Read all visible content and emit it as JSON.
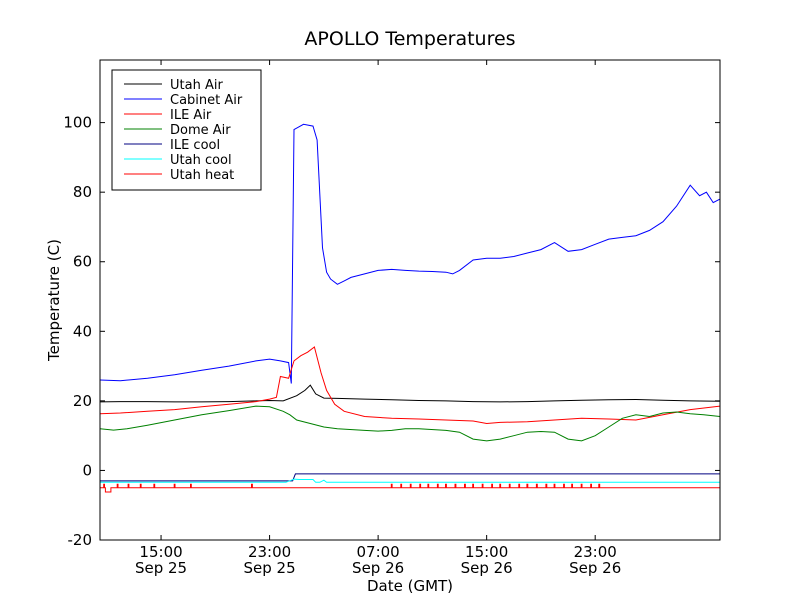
{
  "chart_data": {
    "type": "line",
    "title": "APOLLO Temperatures",
    "xlabel": "Date (GMT)",
    "ylabel": "Temperature (C)",
    "xlim": [
      10.5,
      56.2
    ],
    "ylim": [
      -20,
      118
    ],
    "grid": false,
    "legend_position": "top-left",
    "yticks": [
      {
        "value": -20,
        "label": "-20"
      },
      {
        "value": 0,
        "label": "0"
      },
      {
        "value": 20,
        "label": "20"
      },
      {
        "value": 40,
        "label": "40"
      },
      {
        "value": 60,
        "label": "60"
      },
      {
        "value": 80,
        "label": "80"
      },
      {
        "value": 100,
        "label": "100"
      }
    ],
    "xticks": [
      {
        "value": 15,
        "time": "15:00",
        "date": "Sep 25"
      },
      {
        "value": 23,
        "time": "23:00",
        "date": "Sep 25"
      },
      {
        "value": 31,
        "time": "07:00",
        "date": "Sep 26"
      },
      {
        "value": 39,
        "time": "15:00",
        "date": "Sep 26"
      },
      {
        "value": 47,
        "time": "23:00",
        "date": "Sep 26"
      }
    ],
    "x_units": "hours since 00:00 Sep 25 GMT",
    "series": [
      {
        "name": "Utah Air",
        "color": "#000000",
        "x": [
          10.5,
          12,
          14,
          16,
          18,
          20,
          22,
          23,
          24,
          25,
          25.6,
          26,
          26.4,
          27,
          28,
          30,
          32,
          34,
          36,
          38,
          40,
          42,
          44,
          46,
          48,
          50,
          52,
          54,
          56.2
        ],
        "y": [
          19.7,
          19.8,
          19.8,
          19.7,
          19.7,
          19.8,
          20.0,
          20.1,
          20.0,
          21.5,
          23.0,
          24.5,
          22.0,
          20.8,
          20.7,
          20.5,
          20.3,
          20.1,
          20.0,
          19.8,
          19.7,
          19.8,
          20.0,
          20.2,
          20.3,
          20.4,
          20.2,
          20.0,
          19.9
        ]
      },
      {
        "name": "Cabinet Air",
        "color": "#0000ff",
        "x": [
          10.5,
          12,
          14,
          16,
          18,
          20,
          22,
          23,
          23.8,
          24.4,
          24.6,
          24.8,
          25.5,
          26.2,
          26.5,
          26.9,
          27.2,
          27.5,
          28,
          28.5,
          29,
          30,
          31,
          32,
          33,
          34,
          35,
          36,
          36.5,
          37,
          38,
          39,
          40,
          41,
          42,
          43,
          44,
          45,
          46,
          47,
          48,
          49,
          50,
          51,
          52,
          53,
          54,
          54.7,
          55.2,
          55.7,
          56.2
        ],
        "y": [
          26.0,
          25.8,
          26.5,
          27.5,
          28.8,
          30.0,
          31.5,
          32.0,
          31.5,
          31.0,
          25.0,
          98.0,
          99.5,
          99.0,
          95.0,
          64.0,
          57.0,
          55.0,
          53.5,
          54.5,
          55.5,
          56.5,
          57.5,
          57.8,
          57.5,
          57.3,
          57.2,
          57.0,
          56.5,
          57.5,
          60.5,
          61.0,
          61.0,
          61.5,
          62.5,
          63.5,
          65.5,
          63.0,
          63.5,
          65.0,
          66.5,
          67.0,
          67.5,
          69.0,
          71.5,
          76.0,
          82.0,
          79.0,
          80.0,
          77.0,
          78.0
        ]
      },
      {
        "name": "ILE Air",
        "color": "#ff0000",
        "x": [
          10.5,
          12,
          14,
          16,
          18,
          20,
          22,
          23,
          23.5,
          23.8,
          24.4,
          24.8,
          25.3,
          25.8,
          26.3,
          26.8,
          27.2,
          27.8,
          28.5,
          30,
          32,
          34,
          36,
          38,
          39,
          40,
          42,
          44,
          46,
          48,
          50,
          52,
          54,
          56.2
        ],
        "y": [
          16.3,
          16.5,
          17.0,
          17.5,
          18.3,
          19.0,
          19.8,
          20.5,
          21.0,
          27.0,
          26.5,
          31.5,
          33.0,
          34.0,
          35.5,
          28.0,
          23.0,
          19.0,
          17.0,
          15.5,
          15.0,
          14.8,
          14.5,
          14.2,
          13.5,
          13.8,
          14.0,
          14.5,
          15.0,
          14.8,
          14.5,
          16.0,
          17.5,
          18.5
        ]
      },
      {
        "name": "Dome Air",
        "color": "#008000",
        "x": [
          10.5,
          11.5,
          12.5,
          14,
          16,
          18,
          20,
          22,
          23,
          24,
          24.5,
          25,
          26,
          27,
          28,
          30,
          31,
          32,
          33,
          34,
          36,
          37,
          38,
          39,
          40,
          41,
          42,
          43,
          44,
          45,
          46,
          47,
          48,
          49,
          50,
          51,
          52,
          53,
          54,
          55,
          56.2
        ],
        "y": [
          12.0,
          11.6,
          12.0,
          13.0,
          14.5,
          16.0,
          17.2,
          18.5,
          18.3,
          17.0,
          16.0,
          14.5,
          13.5,
          12.5,
          12.0,
          11.5,
          11.3,
          11.5,
          12.0,
          12.0,
          11.5,
          11.0,
          9.0,
          8.5,
          9.0,
          10.0,
          11.0,
          11.2,
          11.0,
          9.0,
          8.5,
          10.0,
          12.5,
          15.0,
          16.0,
          15.5,
          16.5,
          16.8,
          16.3,
          16.0,
          15.5
        ]
      },
      {
        "name": "ILE cool",
        "color": "#000080",
        "x": [
          10.5,
          24.7,
          24.9,
          56.2
        ],
        "y": [
          -3.0,
          -3.0,
          -1.0,
          -1.0
        ]
      },
      {
        "name": "Utah cool",
        "color": "#00ffff",
        "x": [
          10.5,
          23.8,
          24.2,
          24.6,
          24.8,
          25.2,
          26.2,
          26.4,
          26.7,
          27.0,
          27.2,
          56.2
        ],
        "y": [
          -3.4,
          -3.4,
          -3.4,
          -2.8,
          -2.5,
          -2.6,
          -2.6,
          -3.4,
          -3.4,
          -2.8,
          -3.4,
          -3.4
        ]
      },
      {
        "name": "Utah heat",
        "color": "#ff0000",
        "spike_times": [
          10.8,
          11.8,
          12.6,
          13.5,
          14.5,
          16.0,
          17.2,
          21.7,
          32.0,
          32.7,
          33.4,
          34.1,
          34.7,
          35.4,
          36.0,
          36.7,
          37.4,
          38.0,
          38.7,
          39.4,
          40.0,
          40.7,
          41.4,
          42.0,
          42.7,
          43.4,
          44.0,
          44.7,
          45.3,
          46.0,
          46.7,
          47.3
        ],
        "baseline": -5.0,
        "start_level": -6.2,
        "spike_level": -4.0
      }
    ]
  }
}
